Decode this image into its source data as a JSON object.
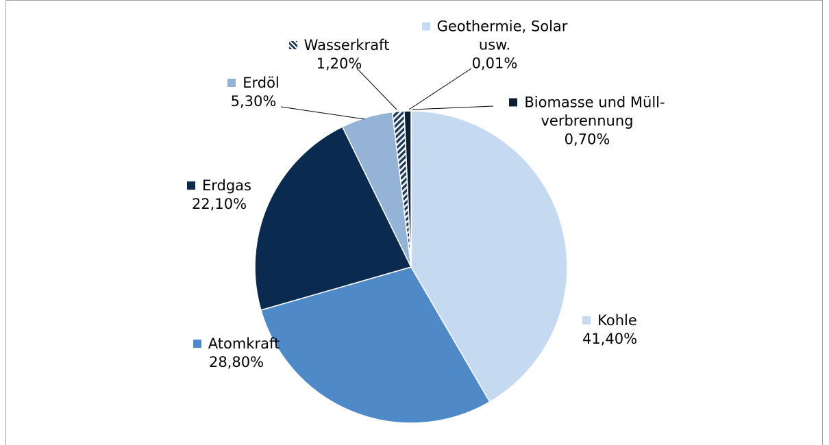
{
  "chart_data": {
    "type": "pie",
    "categories": [
      "Kohle",
      "Atomkraft",
      "Erdgas",
      "Erdöl",
      "Wasserkraft",
      "Geothermie, Solar usw.",
      "Biomasse und Müll-verbrennung"
    ],
    "values": [
      41.4,
      28.8,
      22.1,
      5.3,
      1.2,
      0.01,
      0.7
    ],
    "value_labels": [
      "41,40%",
      "28,80%",
      "22,10%",
      "5,30%",
      "1,20%",
      "0,01%",
      "0,70%"
    ],
    "colors": [
      "#c5d9f1",
      "#4f89c8",
      "#0b2a4f",
      "#95b3d7",
      "hatch",
      "#c5d9f1",
      "#0f1f33"
    ]
  }
}
